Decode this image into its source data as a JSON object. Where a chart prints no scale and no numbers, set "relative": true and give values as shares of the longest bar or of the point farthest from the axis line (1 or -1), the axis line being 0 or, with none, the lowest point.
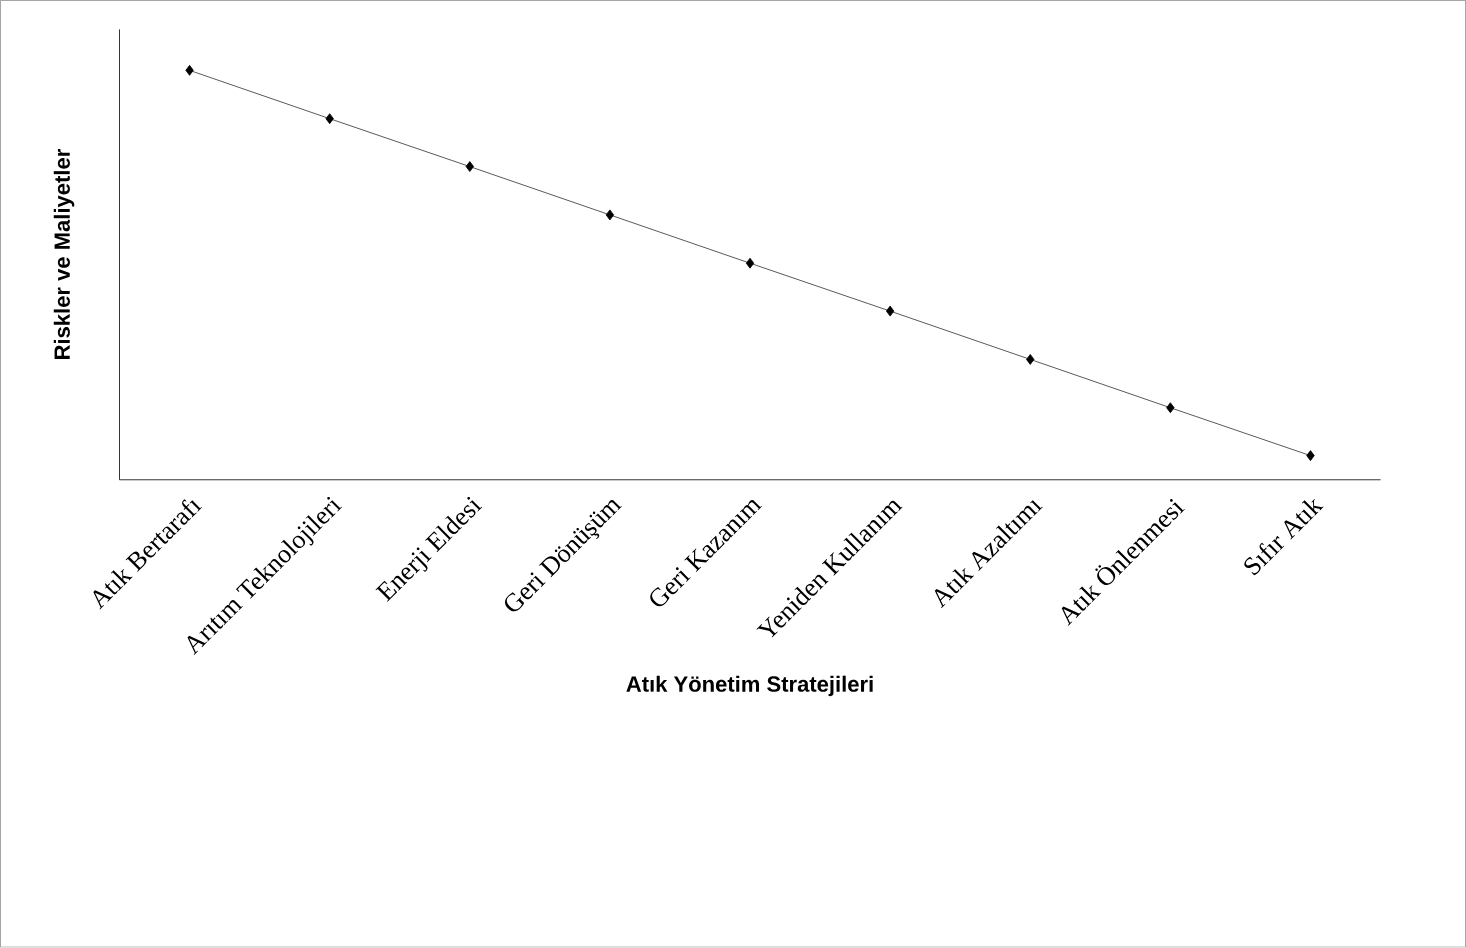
{
  "chart_data": {
    "type": "line",
    "relative": true,
    "xlabel": "Atık Yönetim Stratejileri",
    "ylabel": "Riskler ve Maliyetler",
    "categories": [
      "Atık Bertarafı",
      "Arıtım Teknolojileri",
      "Enerji Eldesi",
      "Geri Dönüşüm",
      "Geri Kazanım",
      "Yeniden Kullanım",
      "Atık Azaltımı",
      "Atık Önlenmesi",
      "Sıfır Atık"
    ],
    "series": [
      {
        "color": "#303030",
        "values": [
          1,
          0.882,
          0.765,
          0.647,
          0.529,
          0.412,
          0.294,
          0.176,
          0.059
        ]
      }
    ],
    "marker": "diamond",
    "line_style": "solid"
  }
}
